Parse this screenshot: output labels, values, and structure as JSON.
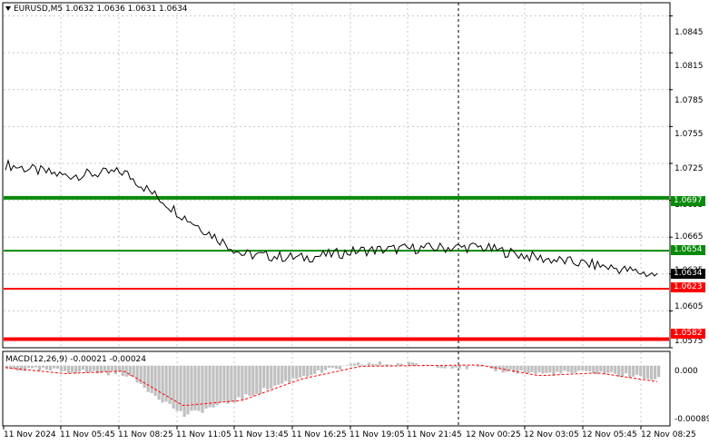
{
  "chart": {
    "symbol_header": "EURUSD,M5  1.0632 1.0636 1.0631 1.0634",
    "indicator_header": "MACD(12,26,9) -0.00021 -0.00024",
    "colors": {
      "background": "#ffffff",
      "price_line": "#000000",
      "resistance_green": "#0a8a0a",
      "support_red": "#ff0000",
      "macd_hist": "#c0c0c0",
      "macd_signal": "#ff0000"
    },
    "price_axis_labels": [
      "1.0845",
      "1.0815",
      "1.0785",
      "1.0755",
      "1.0725",
      "1.0695",
      "1.0665",
      "1.0635",
      "1.0605",
      "1.0575"
    ],
    "tags": {
      "level_1": "1.0697",
      "level_2": "1.0654",
      "current": "1.0634",
      "level_3": "1.0623",
      "level_4": "1.0582"
    },
    "macd_axis_labels": [
      "0.000",
      "-0.00089"
    ],
    "time_labels": [
      "11 Nov 2024",
      "11 Nov 05:45",
      "11 Nov 08:25",
      "11 Nov 11:05",
      "11 Nov 13:45",
      "11 Nov 16:25",
      "11 Nov 19:05",
      "11 Nov 21:45",
      "12 Nov 00:25",
      "12 Nov 03:05",
      "12 Nov 05:45",
      "12 Nov 08:25"
    ]
  },
  "chart_data": {
    "type": "line",
    "symbol": "EURUSD",
    "timeframe": "M5",
    "ylim": [
      1.0575,
      1.0855
    ],
    "x": [
      "11 Nov 2024",
      "11 Nov 05:45",
      "11 Nov 08:25",
      "11 Nov 11:05",
      "11 Nov 13:45",
      "11 Nov 16:25",
      "11 Nov 19:05",
      "11 Nov 21:45",
      "12 Nov 00:25",
      "12 Nov 03:05",
      "12 Nov 05:45",
      "12 Nov 08:25"
    ],
    "series": [
      {
        "name": "EURUSD",
        "values": [
          1.0724,
          1.0715,
          1.0718,
          1.0682,
          1.0651,
          1.0648,
          1.0654,
          1.0656,
          1.0657,
          1.0648,
          1.0642,
          1.0634
        ]
      }
    ],
    "horizontal_levels": [
      1.0697,
      1.0654,
      1.0623,
      1.0582
    ],
    "macd": {
      "ylim": [
        -0.00089,
        0.0002
      ],
      "histogram": [
        -5e-05,
        -8e-05,
        -0.00012,
        -0.00075,
        -0.00048,
        -0.00015,
        3e-05,
        2e-05,
        -4e-05,
        -0.00012,
        -0.0001,
        -0.00021
      ],
      "signal": [
        -3e-05,
        -0.00012,
        -8e-05,
        -0.0006,
        -0.00052,
        -0.0002,
        -1e-05,
        0.0,
        1e-05,
        -0.00015,
        -0.00011,
        -0.00024
      ]
    }
  }
}
